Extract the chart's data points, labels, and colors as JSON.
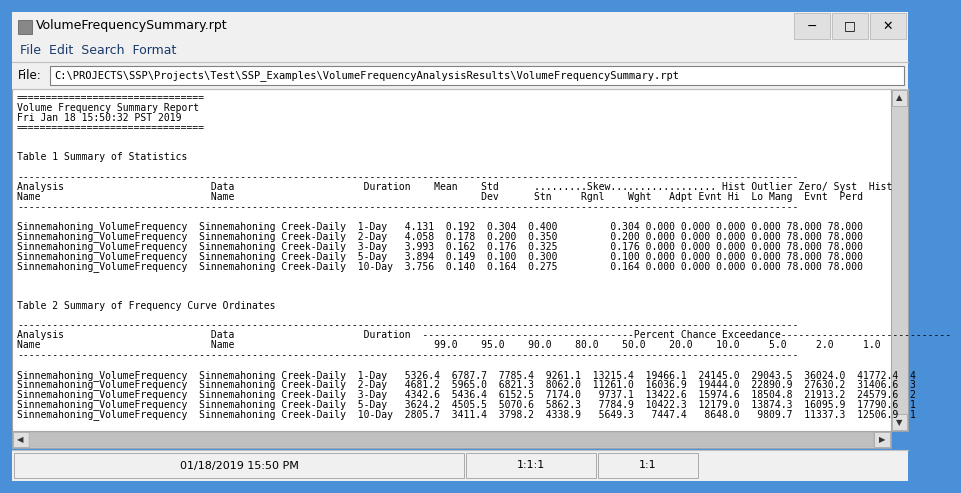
{
  "title_bar": "VolumeFrequencySummary.rpt",
  "menu_items": "File  Edit  Search  Format",
  "file_label": "File:",
  "file_path": "C:\\PROJECTS\\SSP\\Projects\\Test\\SSP_Examples\\VolumeFrequencyAnalysisResults\\VolumeFrequencySummary.rpt",
  "status_left": "01/18/2019 15:50 PM",
  "status_mid": "1:1:1",
  "status_right": "1:1",
  "title_bg": "#f0f0f0",
  "title_border_top": "#4a90d9",
  "title_text_color": "#000000",
  "menu_bg": "#f0f0f0",
  "menu_text_color": "#1a3a6b",
  "file_bg": "#f0f0f0",
  "content_bg": "#ffffff",
  "scrollbar_bg": "#c8c8c8",
  "status_bg": "#f0f0f0",
  "outer_border": "#4a90d9",
  "font_size": 7.0,
  "report_lines": [
    "================================",
    "Volume Frequency Summary Report",
    "Fri Jan 18 15:50:32 PST 2019",
    "================================",
    "",
    "",
    "Table 1 Summary of Statistics",
    "",
    "-------------------------------------------------------------------------------------------------------------------------------------",
    "Analysis                         Data                      Duration    Mean    Std      .........Skew.................. Hist Outlier Zero/ Syst  Hist",
    "Name                             Name                                          Dev      Stn     Rgnl    Wght   Adpt Evnt Hi  Lo Mang  Evnt  Perd",
    "-------------------------------------------------------------------------------------------------------------------------------------",
    "",
    "Sinnemahoning_VolumeFrequency  Sinnemahoning Creek-Daily  1-Day   4.131  0.192  0.304  0.400         0.304 0.000 0.000 0.000 0.000 78.000 78.000",
    "Sinnemahoning_VolumeFrequency  Sinnemahoning Creek-Daily  2-Day   4.058  0.178  0.200  0.350         0.200 0.000 0.000 0.000 0.000 78.000 78.000",
    "Sinnemahoning_VolumeFrequency  Sinnemahoning Creek-Daily  3-Day   3.993  0.162  0.176  0.325         0.176 0.000 0.000 0.000 0.000 78.000 78.000",
    "Sinnemahoning_VolumeFrequency  Sinnemahoning Creek-Daily  5-Day   3.894  0.149  0.100  0.300         0.100 0.000 0.000 0.000 0.000 78.000 78.000",
    "Sinnemahoning_VolumeFrequency  Sinnemahoning Creek-Daily  10-Day  3.756  0.140  0.164  0.275         0.164 0.000 0.000 0.000 0.000 78.000 78.000",
    "",
    "",
    "",
    "Table 2 Summary of Frequency Curve Ordinates",
    "",
    "-------------------------------------------------------------------------------------------------------------------------------------",
    "Analysis                         Data                      Duration  ------------------------------------Percent Chance Exceedance-----------------------------",
    "Name                             Name                                  99.0    95.0    90.0    80.0    50.0    20.0    10.0     5.0     2.0     1.0",
    "-------------------------------------------------------------------------------------------------------------------------------------",
    "",
    "Sinnemahoning_VolumeFrequency  Sinnemahoning Creek-Daily  1-Day   5326.4  6787.7  7785.4  9261.1  13215.4  19466.1  24145.0  29043.5  36024.0  41772.4  4",
    "Sinnemahoning_VolumeFrequency  Sinnemahoning Creek-Daily  2-Day   4681.2  5965.0  6821.3  8062.0  11261.0  16036.9  19444.0  22890.9  27630.2  31406.6  3",
    "Sinnemahoning_VolumeFrequency  Sinnemahoning Creek-Daily  3-Day   4342.6  5436.4  6152.5  7174.0   9737.1  13422.6  15974.6  18504.8  21913.2  24579.6  2",
    "Sinnemahoning_VolumeFrequency  Sinnemahoning Creek-Daily  5-Day   3624.2  4505.5  5070.6  5862.3   7784.9  10422.3  12179.0  13874.3  16095.9  17790.6  1",
    "Sinnemahoning_VolumeFrequency  Sinnemahoning Creek-Daily  10-Day  2805.7  3411.4  3798.2  4338.9   5649.3   7447.4   8648.0   9809.7  11337.3  12506.9  1"
  ]
}
